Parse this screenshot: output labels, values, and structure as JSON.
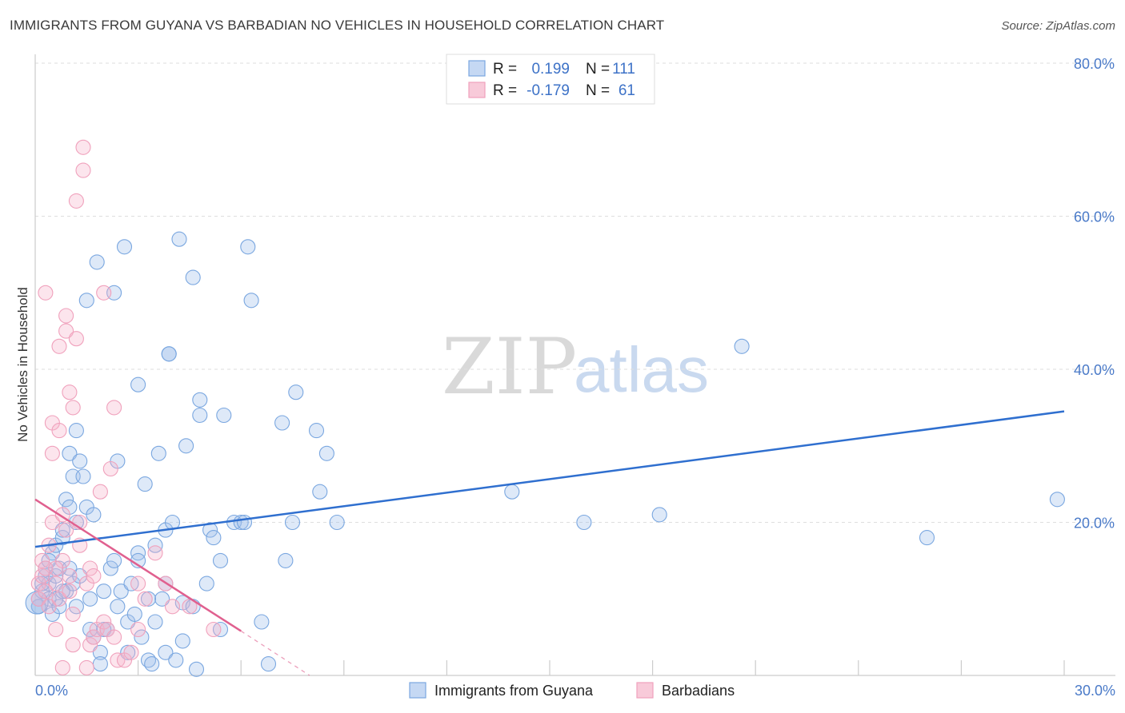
{
  "chart_data": {
    "type": "scatter",
    "title": "IMMIGRANTS FROM GUYANA VS BARBADIAN NO VEHICLES IN HOUSEHOLD CORRELATION CHART",
    "source": "Source: ZipAtlas.com",
    "ylabel": "No Vehicles in Household",
    "xlabel": "",
    "xlim": [
      0,
      30
    ],
    "ylim": [
      0,
      80
    ],
    "x_tick_labels": [
      "0.0%",
      "30.0%"
    ],
    "y_ticks": [
      20,
      40,
      60,
      80
    ],
    "y_tick_labels": [
      "20.0%",
      "40.0%",
      "60.0%",
      "80.0%"
    ],
    "watermark": {
      "zip": "ZIP",
      "atlas": "atlas"
    },
    "legend": {
      "rows": [
        {
          "r_label": "R =",
          "r_value": "0.199",
          "n_label": "N =",
          "n_value": "111"
        },
        {
          "r_label": "R =",
          "r_value": "-0.179",
          "n_label": "N =",
          "n_value": "61"
        }
      ]
    },
    "series": [
      {
        "name": "Immigrants from Guyana",
        "color": "#7aa7e0",
        "line_color": "#2f6fcf",
        "trend": {
          "x0": 0,
          "y0": 16.8,
          "x1": 30,
          "y1": 34.5
        },
        "points": [
          [
            0.1,
            10
          ],
          [
            0.1,
            9
          ],
          [
            0.2,
            11
          ],
          [
            0.3,
            13
          ],
          [
            0.3,
            14
          ],
          [
            0.4,
            12
          ],
          [
            0.4,
            10
          ],
          [
            0.5,
            16
          ],
          [
            0.5,
            8
          ],
          [
            0.6,
            17
          ],
          [
            0.6,
            13
          ],
          [
            0.7,
            14
          ],
          [
            0.7,
            9
          ],
          [
            0.8,
            18
          ],
          [
            0.8,
            19
          ],
          [
            0.9,
            23
          ],
          [
            0.9,
            11
          ],
          [
            1.0,
            29
          ],
          [
            1.0,
            22
          ],
          [
            1.1,
            26
          ],
          [
            1.1,
            12
          ],
          [
            1.2,
            32
          ],
          [
            1.2,
            9
          ],
          [
            1.3,
            28
          ],
          [
            1.3,
            13
          ],
          [
            1.4,
            26
          ],
          [
            1.5,
            49
          ],
          [
            1.5,
            22
          ],
          [
            1.6,
            6
          ],
          [
            1.7,
            5
          ],
          [
            1.7,
            21
          ],
          [
            1.8,
            54
          ],
          [
            1.9,
            3
          ],
          [
            1.9,
            1.5
          ],
          [
            2.0,
            11
          ],
          [
            2.1,
            6
          ],
          [
            2.2,
            14
          ],
          [
            2.3,
            50
          ],
          [
            2.3,
            15
          ],
          [
            2.4,
            28
          ],
          [
            2.4,
            9
          ],
          [
            2.5,
            11
          ],
          [
            2.6,
            56
          ],
          [
            2.7,
            3
          ],
          [
            2.7,
            7
          ],
          [
            2.9,
            8
          ],
          [
            3.0,
            16
          ],
          [
            3.0,
            15
          ],
          [
            3.0,
            38
          ],
          [
            3.1,
            5
          ],
          [
            3.2,
            25
          ],
          [
            3.3,
            2
          ],
          [
            3.4,
            1.5
          ],
          [
            3.5,
            7
          ],
          [
            3.5,
            17
          ],
          [
            3.6,
            29
          ],
          [
            3.7,
            10
          ],
          [
            3.8,
            3
          ],
          [
            3.8,
            19
          ],
          [
            3.9,
            42
          ],
          [
            3.9,
            42
          ],
          [
            4.0,
            20
          ],
          [
            4.1,
            2
          ],
          [
            4.2,
            57
          ],
          [
            4.3,
            4.5
          ],
          [
            4.3,
            9.5
          ],
          [
            4.4,
            30
          ],
          [
            4.6,
            9
          ],
          [
            4.6,
            52
          ],
          [
            4.7,
            0.8
          ],
          [
            4.8,
            34
          ],
          [
            4.8,
            36
          ],
          [
            5.0,
            12
          ],
          [
            5.1,
            19
          ],
          [
            5.2,
            18
          ],
          [
            5.4,
            15
          ],
          [
            5.4,
            6
          ],
          [
            5.5,
            34
          ],
          [
            5.8,
            20
          ],
          [
            6.0,
            20
          ],
          [
            6.1,
            20
          ],
          [
            6.2,
            56
          ],
          [
            6.3,
            49
          ],
          [
            6.6,
            7
          ],
          [
            6.8,
            1.5
          ],
          [
            7.2,
            33
          ],
          [
            7.3,
            15
          ],
          [
            7.5,
            20
          ],
          [
            7.6,
            37
          ],
          [
            8.2,
            32
          ],
          [
            8.3,
            24
          ],
          [
            8.5,
            29
          ],
          [
            8.8,
            20
          ],
          [
            13.9,
            24
          ],
          [
            16.0,
            20
          ],
          [
            18.2,
            21
          ],
          [
            20.6,
            43
          ],
          [
            26.0,
            18
          ],
          [
            29.8,
            23
          ],
          [
            0.1,
            9
          ],
          [
            0.2,
            12
          ],
          [
            0.4,
            15
          ],
          [
            0.6,
            10
          ],
          [
            0.8,
            11
          ],
          [
            1.0,
            14
          ],
          [
            1.2,
            20
          ],
          [
            1.6,
            10
          ],
          [
            2.0,
            6
          ],
          [
            2.8,
            12
          ],
          [
            3.3,
            10
          ],
          [
            3.8,
            12
          ]
        ]
      },
      {
        "name": "Barbadians",
        "color": "#f0a1bc",
        "line_color": "#e0608f",
        "trend": {
          "x0": 0,
          "y0": 23.0,
          "x1": 6.0,
          "y1": 5.8
        },
        "trend_dash": {
          "x0": 6.0,
          "y0": 5.8,
          "x1": 8.0,
          "y1": 0
        },
        "points": [
          [
            0.1,
            12
          ],
          [
            0.1,
            10
          ],
          [
            0.2,
            15
          ],
          [
            0.2,
            13
          ],
          [
            0.3,
            14
          ],
          [
            0.3,
            50
          ],
          [
            0.4,
            17
          ],
          [
            0.4,
            9
          ],
          [
            0.5,
            20
          ],
          [
            0.5,
            29
          ],
          [
            0.5,
            33
          ],
          [
            0.6,
            12
          ],
          [
            0.6,
            6
          ],
          [
            0.7,
            10
          ],
          [
            0.7,
            32
          ],
          [
            0.7,
            43
          ],
          [
            0.8,
            21
          ],
          [
            0.8,
            1
          ],
          [
            0.8,
            15
          ],
          [
            0.9,
            47
          ],
          [
            0.9,
            45
          ],
          [
            0.9,
            19
          ],
          [
            1.0,
            13
          ],
          [
            1.0,
            37
          ],
          [
            1.0,
            11
          ],
          [
            1.1,
            35
          ],
          [
            1.1,
            4
          ],
          [
            1.2,
            44
          ],
          [
            1.2,
            62
          ],
          [
            1.3,
            20
          ],
          [
            1.3,
            17
          ],
          [
            1.4,
            69
          ],
          [
            1.4,
            66
          ],
          [
            1.5,
            12
          ],
          [
            1.5,
            1
          ],
          [
            1.6,
            4
          ],
          [
            1.6,
            14
          ],
          [
            1.7,
            13
          ],
          [
            1.7,
            5
          ],
          [
            1.8,
            6
          ],
          [
            1.9,
            24
          ],
          [
            2.0,
            50
          ],
          [
            2.0,
            7
          ],
          [
            2.1,
            6
          ],
          [
            2.2,
            27
          ],
          [
            2.3,
            5
          ],
          [
            2.3,
            35
          ],
          [
            2.4,
            2
          ],
          [
            2.6,
            2
          ],
          [
            2.8,
            3
          ],
          [
            3.0,
            6
          ],
          [
            3.0,
            12
          ],
          [
            3.2,
            10
          ],
          [
            3.5,
            16
          ],
          [
            3.8,
            12
          ],
          [
            4.0,
            9
          ],
          [
            4.5,
            9
          ],
          [
            5.2,
            6
          ],
          [
            0.3,
            11
          ],
          [
            0.6,
            14
          ],
          [
            1.1,
            8
          ]
        ]
      }
    ]
  }
}
